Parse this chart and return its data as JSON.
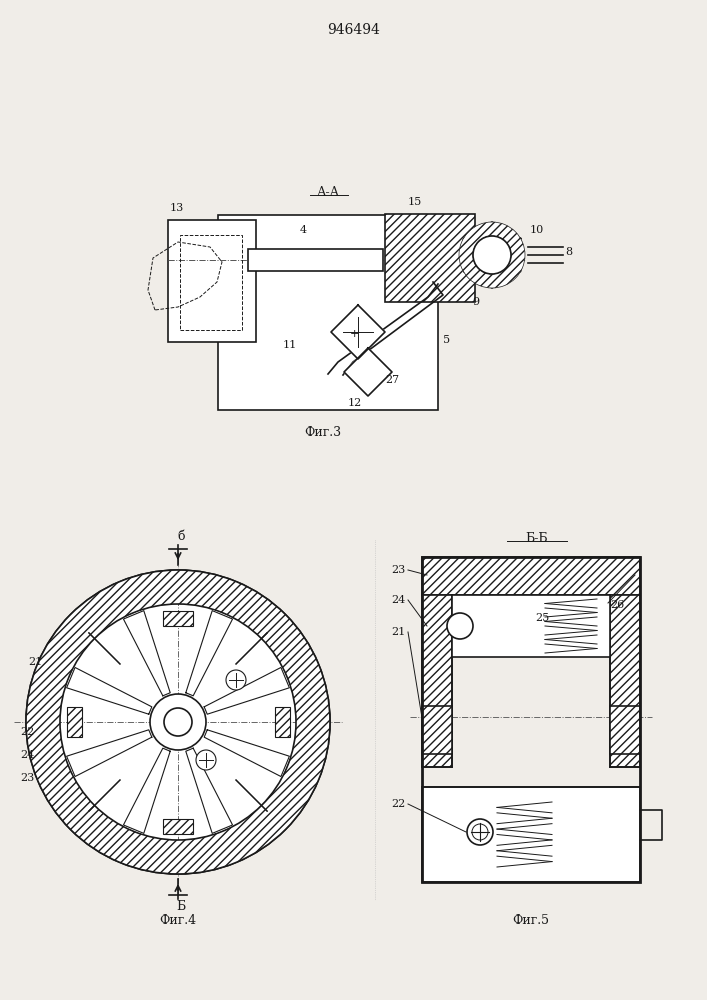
{
  "title": "946494",
  "background_color": "#f0ede8",
  "line_color": "#1a1a1a",
  "fig3_label": "Фиг.3",
  "fig4_label": "Фиг.4",
  "fig5_label": "Фиг.5",
  "section_aa_label": "А-А",
  "section_bb_label": "Б-Б"
}
